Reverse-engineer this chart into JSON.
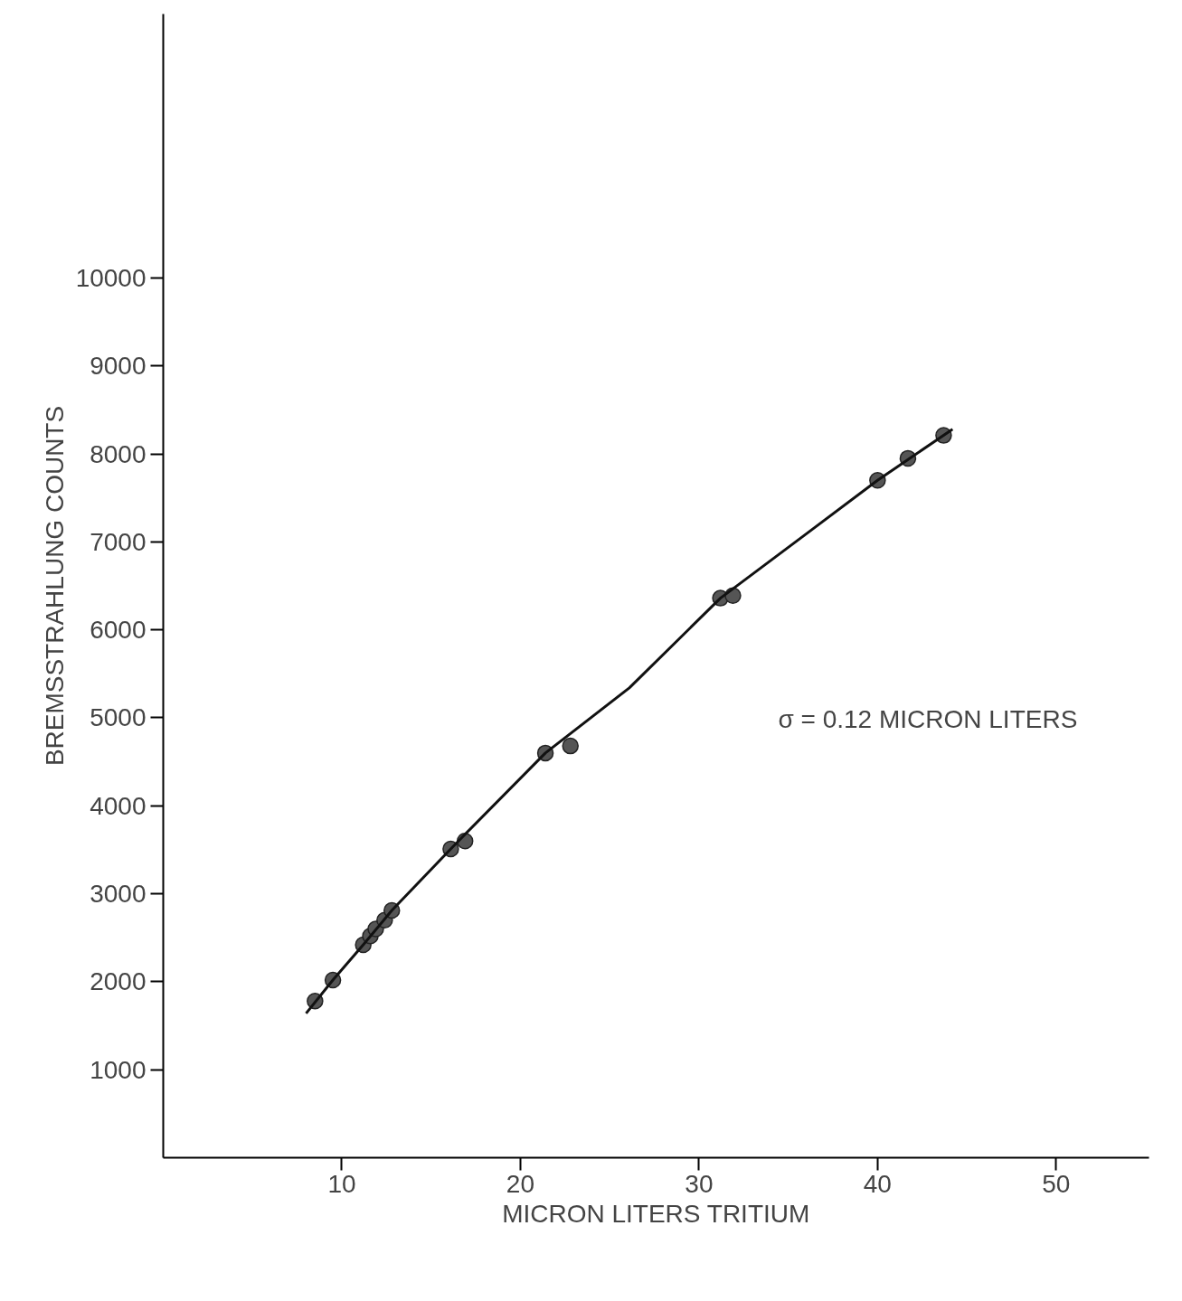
{
  "chart_data": {
    "type": "scatter",
    "xlabel": "MICRON LITERS TRITIUM",
    "ylabel": "BREMSSTRAHLUNG COUNTS",
    "xlim": [
      0,
      55.2
    ],
    "ylim": [
      0,
      13000
    ],
    "xticks": [
      10,
      20,
      30,
      40,
      50
    ],
    "yticks": [
      1000,
      2000,
      3000,
      4000,
      5000,
      6000,
      7000,
      8000,
      9000,
      10000
    ],
    "grid": false,
    "marker": "circle",
    "annotations": [
      "σ = 0.12 MICRON LITERS"
    ],
    "series": [
      {
        "color": "#555555",
        "x": [
          8.5,
          9.5,
          11.2,
          11.6,
          11.9,
          12.4,
          12.8,
          16.1,
          16.9,
          21.4,
          22.8,
          31.2,
          31.9,
          40.0,
          41.7,
          43.7
        ],
        "values": [
          1780,
          2020,
          2420,
          2520,
          2600,
          2700,
          2810,
          3510,
          3600,
          4600,
          4680,
          6360,
          6390,
          7700,
          7950,
          8210
        ]
      },
      {
        "type": "line",
        "color": "#111111",
        "marker": "none",
        "x": [
          8.0,
          9.5,
          11.2,
          12.8,
          16.1,
          21.4,
          26.1,
          31.2,
          36.0,
          40.0,
          44.2
        ],
        "values": [
          1640,
          2020,
          2420,
          2810,
          3510,
          4600,
          5340,
          6360,
          7090,
          7700,
          8280
        ]
      }
    ]
  }
}
